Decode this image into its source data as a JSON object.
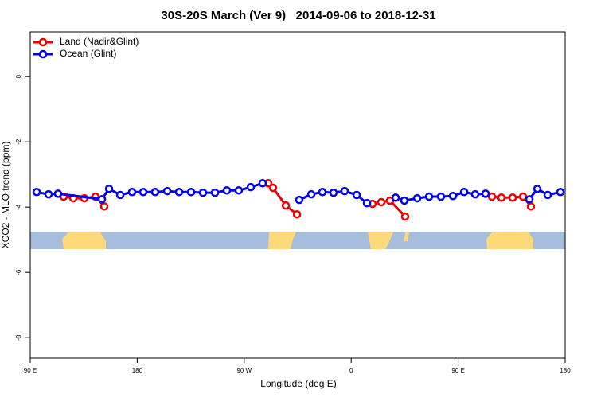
{
  "chart_data": {
    "type": "line",
    "title": "30S-20S March (Ver 9)   2014-09-06 to 2018-12-31",
    "xlabel": "Longitude (deg E)",
    "ylabel": "XCO2 - MLO trend (ppm)",
    "xlim": [
      90,
      540
    ],
    "ylim": [
      -8.63,
      1.37
    ],
    "xticks": [
      {
        "value": 90,
        "label": "90 E"
      },
      {
        "value": 180,
        "label": "180"
      },
      {
        "value": 270,
        "label": "90 W"
      },
      {
        "value": 360,
        "label": "0"
      },
      {
        "value": 450,
        "label": "90 E"
      },
      {
        "value": 540,
        "label": "180"
      }
    ],
    "yticks": [
      0,
      -2,
      -4,
      -6,
      -8
    ],
    "legend": "top-left",
    "series": [
      {
        "name": "Land (Nadir&Glint)",
        "color": "#ee0000",
        "x": [
          118.1,
          126.2,
          135.5,
          144.9,
          152.3,
          null,
          290.2,
          294.2,
          305.0,
          314.4,
          null,
          377.9,
          385.3,
          392.7,
          405.4,
          null,
          478.4,
          486.4,
          495.8,
          504.5,
          511.2
        ],
        "values": [
          -3.68,
          -3.73,
          -3.73,
          -3.68,
          -3.98,
          null,
          -3.27,
          -3.41,
          -3.95,
          -4.22,
          null,
          -3.9,
          -3.85,
          -3.8,
          -4.29,
          null,
          -3.68,
          -3.71,
          -3.71,
          -3.68,
          -3.98
        ]
      },
      {
        "name": "Ocean (Glint)",
        "color": "#0000ee",
        "x": [
          95.4,
          105.4,
          113.4,
          150.3,
          156.3,
          165.7,
          175.7,
          185.1,
          195.1,
          205.2,
          215.2,
          225.3,
          235.3,
          245.4,
          255.4,
          265.4,
          275.5,
          285.5,
          null,
          316.3,
          326.4,
          335.8,
          345.1,
          354.5,
          364.6,
          373.3,
          null,
          397.4,
          404.7,
          415.5,
          425.5,
          435.5,
          445.6,
          455.0,
          464.3,
          473.0,
          null,
          509.9,
          516.6,
          525.3,
          536.0
        ],
        "values": [
          -3.54,
          -3.61,
          -3.59,
          -3.76,
          -3.44,
          -3.63,
          -3.54,
          -3.54,
          -3.54,
          -3.51,
          -3.54,
          -3.54,
          -3.56,
          -3.56,
          -3.49,
          -3.49,
          -3.39,
          -3.27,
          null,
          -3.78,
          -3.61,
          -3.54,
          -3.56,
          -3.51,
          -3.63,
          -3.88,
          null,
          -3.71,
          -3.8,
          -3.73,
          -3.68,
          -3.68,
          -3.66,
          -3.54,
          -3.61,
          -3.59,
          null,
          -3.76,
          -3.44,
          -3.63,
          -3.54
        ]
      }
    ]
  }
}
